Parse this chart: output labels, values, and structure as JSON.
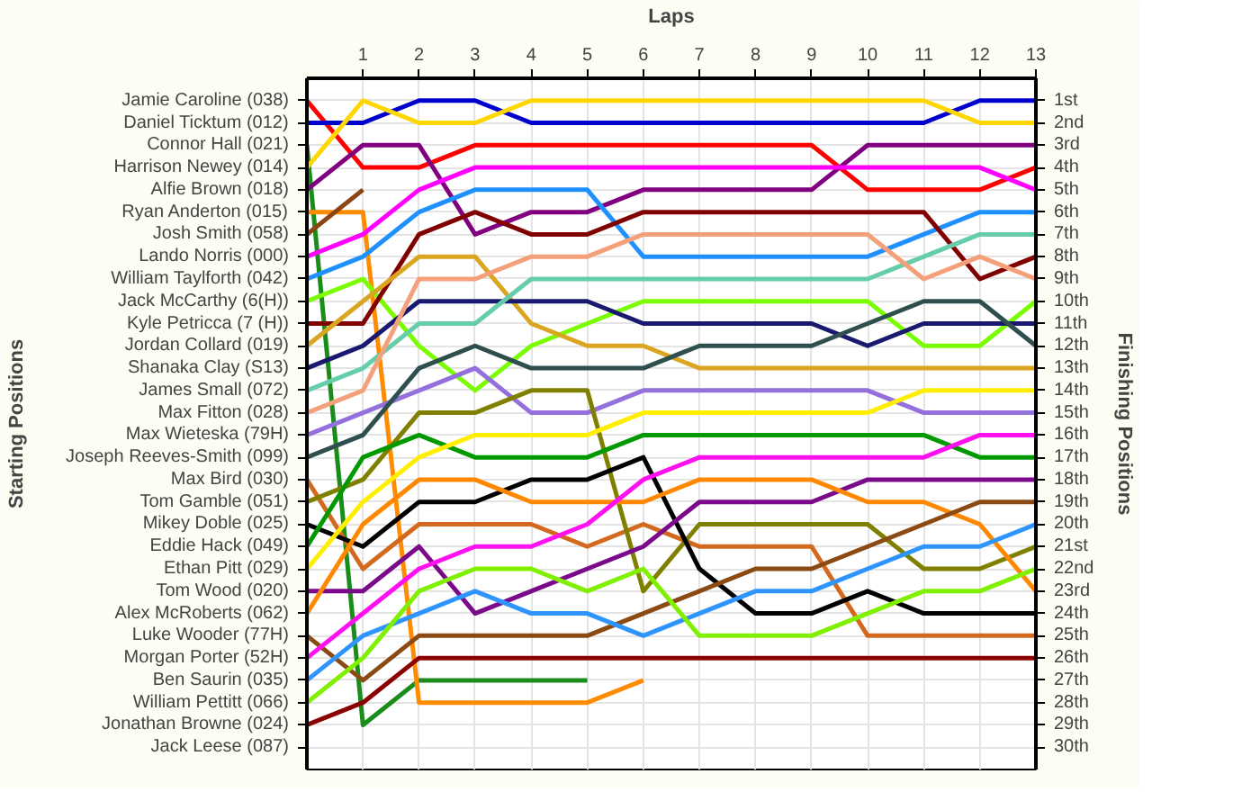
{
  "chart_data": {
    "type": "line",
    "xlabel": "Laps",
    "ylabel": "Finishing Positions",
    "x": [
      0,
      1,
      2,
      3,
      4,
      5,
      6,
      7,
      8,
      9,
      10,
      11,
      12,
      13
    ],
    "xlim": [
      0,
      13
    ],
    "xticks": [
      1,
      2,
      3,
      4,
      5,
      6,
      7,
      8,
      9,
      10,
      11,
      12,
      13
    ],
    "ylim": [
      31,
      0
    ],
    "yticks": [
      {
        "value": 1,
        "label": "1st"
      },
      {
        "value": 2,
        "label": "2nd"
      },
      {
        "value": 3,
        "label": "3rd"
      },
      {
        "value": 4,
        "label": "4th"
      },
      {
        "value": 5,
        "label": "5th"
      },
      {
        "value": 6,
        "label": "6th"
      },
      {
        "value": 7,
        "label": "7th"
      },
      {
        "value": 8,
        "label": "8th"
      },
      {
        "value": 9,
        "label": "9th"
      },
      {
        "value": 10,
        "label": "10th"
      },
      {
        "value": 11,
        "label": "11th"
      },
      {
        "value": 12,
        "label": "12th"
      },
      {
        "value": 13,
        "label": "13th"
      },
      {
        "value": 14,
        "label": "14th"
      },
      {
        "value": 15,
        "label": "15th"
      },
      {
        "value": 16,
        "label": "16th"
      },
      {
        "value": 17,
        "label": "17th"
      },
      {
        "value": 18,
        "label": "18th"
      },
      {
        "value": 19,
        "label": "19th"
      },
      {
        "value": 20,
        "label": "20th"
      },
      {
        "value": 21,
        "label": "21st"
      },
      {
        "value": 22,
        "label": "22nd"
      },
      {
        "value": 23,
        "label": "23rd"
      },
      {
        "value": 24,
        "label": "24th"
      },
      {
        "value": 25,
        "label": "25th"
      },
      {
        "value": 26,
        "label": "26th"
      },
      {
        "value": 27,
        "label": "27th"
      },
      {
        "value": 28,
        "label": "28th"
      },
      {
        "value": 29,
        "label": "29th"
      },
      {
        "value": 30,
        "label": "30th"
      }
    ],
    "grid": true,
    "line_style": "solid",
    "annotations": [
      "Starting Positions",
      "Jamie Caroline (038)",
      "Daniel Ticktum (012)",
      "Connor Hall (021)",
      "Harrison Newey (014)",
      "Alfie Brown (018)",
      "Ryan Anderton (015)",
      "Josh Smith (058)",
      "Lando Norris (000)",
      "William Taylforth (042)",
      "Jack McCarthy (6(H))",
      "Kyle Petricca (7 (H))",
      "Jordan Collard (019)",
      "Shanaka Clay (S13)",
      "James Small (072)",
      "Max Fitton (028)",
      "Max Wieteska (79H)",
      "Joseph Reeves-Smith (099)",
      "Max Bird (030)",
      "Tom Gamble (051)",
      "Mikey Doble (025)",
      "Eddie Hack (049)",
      "Ethan Pitt (029)",
      "Tom Wood (020)",
      "Alex McRoberts (062)",
      "Luke Wooder (77H)",
      "Morgan Porter (52H)",
      "Ben Saurin (035)",
      "William Pettitt (066)",
      "Jonathan Browne (024)",
      "Jack Leese (087)"
    ],
    "series": [
      {
        "color": "#ff0000",
        "values": [
          1,
          4,
          4,
          3,
          3,
          3,
          3,
          3,
          3,
          3,
          5,
          5,
          5,
          4
        ]
      },
      {
        "color": "#0000cd",
        "values": [
          2,
          2,
          1,
          1,
          2,
          2,
          2,
          2,
          2,
          2,
          2,
          2,
          1,
          1
        ]
      },
      {
        "color": "#1a8c1a",
        "values": [
          3,
          29,
          27,
          27,
          27,
          27,
          null,
          null,
          null,
          null,
          null,
          null,
          null,
          null
        ]
      },
      {
        "color": "#ffd700",
        "values": [
          4,
          1,
          2,
          2,
          1,
          1,
          1,
          1,
          1,
          1,
          1,
          1,
          2,
          2
        ]
      },
      {
        "color": "#800080",
        "values": [
          5,
          3,
          3,
          7,
          6,
          6,
          5,
          5,
          5,
          5,
          3,
          3,
          3,
          3
        ]
      },
      {
        "color": "#ff8c00",
        "values": [
          6,
          6,
          28,
          28,
          28,
          28,
          27,
          null,
          null,
          null,
          null,
          null,
          null,
          null
        ]
      },
      {
        "color": "#8b4513",
        "values": [
          7,
          5,
          null,
          null,
          null,
          null,
          null,
          null,
          null,
          null,
          null,
          null,
          null,
          null
        ]
      },
      {
        "color": "#ff00ff",
        "values": [
          8,
          7,
          5,
          4,
          4,
          4,
          4,
          4,
          4,
          4,
          4,
          4,
          4,
          5
        ]
      },
      {
        "color": "#1e90ff",
        "values": [
          9,
          8,
          6,
          5,
          5,
          5,
          8,
          8,
          8,
          8,
          8,
          7,
          6,
          6
        ]
      },
      {
        "color": "#7cfc00",
        "values": [
          10,
          9,
          12,
          14,
          12,
          11,
          10,
          10,
          10,
          10,
          10,
          12,
          12,
          10
        ]
      },
      {
        "color": "#800000",
        "values": [
          11,
          11,
          7,
          6,
          7,
          7,
          6,
          6,
          6,
          6,
          6,
          6,
          9,
          8
        ]
      },
      {
        "color": "#daa520",
        "values": [
          12,
          10,
          8,
          8,
          11,
          12,
          12,
          13,
          13,
          13,
          13,
          13,
          13,
          13
        ]
      },
      {
        "color": "#191970",
        "values": [
          13,
          12,
          10,
          10,
          10,
          10,
          11,
          11,
          11,
          11,
          12,
          11,
          11,
          11
        ]
      },
      {
        "color": "#66cdaa",
        "values": [
          14,
          13,
          11,
          11,
          9,
          9,
          9,
          9,
          9,
          9,
          9,
          8,
          7,
          7
        ]
      },
      {
        "color": "#f4a07a",
        "values": [
          15,
          14,
          9,
          9,
          8,
          8,
          7,
          7,
          7,
          7,
          7,
          9,
          8,
          9
        ]
      },
      {
        "color": "#9370db",
        "values": [
          16,
          15,
          14,
          13,
          15,
          15,
          14,
          14,
          14,
          14,
          14,
          15,
          15,
          15
        ]
      },
      {
        "color": "#2f4f4f",
        "values": [
          17,
          16,
          13,
          12,
          13,
          13,
          13,
          12,
          12,
          12,
          11,
          10,
          10,
          12
        ]
      },
      {
        "color": "#d2691e",
        "values": [
          18,
          22,
          20,
          20,
          20,
          21,
          20,
          21,
          21,
          21,
          25,
          25,
          25,
          25
        ]
      },
      {
        "color": "#808000",
        "values": [
          19,
          18,
          15,
          15,
          14,
          14,
          23,
          20,
          20,
          20,
          20,
          22,
          22,
          21
        ]
      },
      {
        "color": "#000000",
        "values": [
          20,
          21,
          19,
          19,
          18,
          18,
          17,
          22,
          24,
          24,
          23,
          24,
          24,
          24
        ]
      },
      {
        "color": "#009900",
        "values": [
          21,
          17,
          16,
          17,
          17,
          17,
          16,
          16,
          16,
          16,
          16,
          16,
          17,
          17
        ]
      },
      {
        "color": "#ffee00",
        "values": [
          22,
          19,
          17,
          16,
          16,
          16,
          15,
          15,
          15,
          15,
          15,
          14,
          14,
          14
        ]
      },
      {
        "color": "#7b0a8a",
        "values": [
          23,
          23,
          21,
          24,
          23,
          22,
          21,
          19,
          19,
          19,
          18,
          18,
          18,
          18
        ]
      },
      {
        "color": "#ff8800",
        "values": [
          24,
          20,
          18,
          18,
          19,
          19,
          19,
          18,
          18,
          18,
          19,
          19,
          20,
          23
        ]
      },
      {
        "color": "#8b4a13",
        "values": [
          25,
          27,
          25,
          25,
          25,
          25,
          24,
          23,
          22,
          22,
          21,
          20,
          19,
          19
        ]
      },
      {
        "color": "#ff10f0",
        "values": [
          26,
          24,
          22,
          21,
          21,
          20,
          18,
          17,
          17,
          17,
          17,
          17,
          16,
          16
        ]
      },
      {
        "color": "#2e95ff",
        "values": [
          27,
          25,
          24,
          23,
          24,
          24,
          25,
          24,
          23,
          23,
          22,
          21,
          21,
          20
        ]
      },
      {
        "color": "#80f000",
        "values": [
          28,
          26,
          23,
          22,
          22,
          23,
          22,
          25,
          25,
          25,
          24,
          23,
          23,
          22
        ]
      },
      {
        "color": "#8b0000",
        "values": [
          29,
          28,
          26,
          26,
          26,
          26,
          26,
          26,
          26,
          26,
          26,
          26,
          26,
          26
        ]
      }
    ]
  }
}
